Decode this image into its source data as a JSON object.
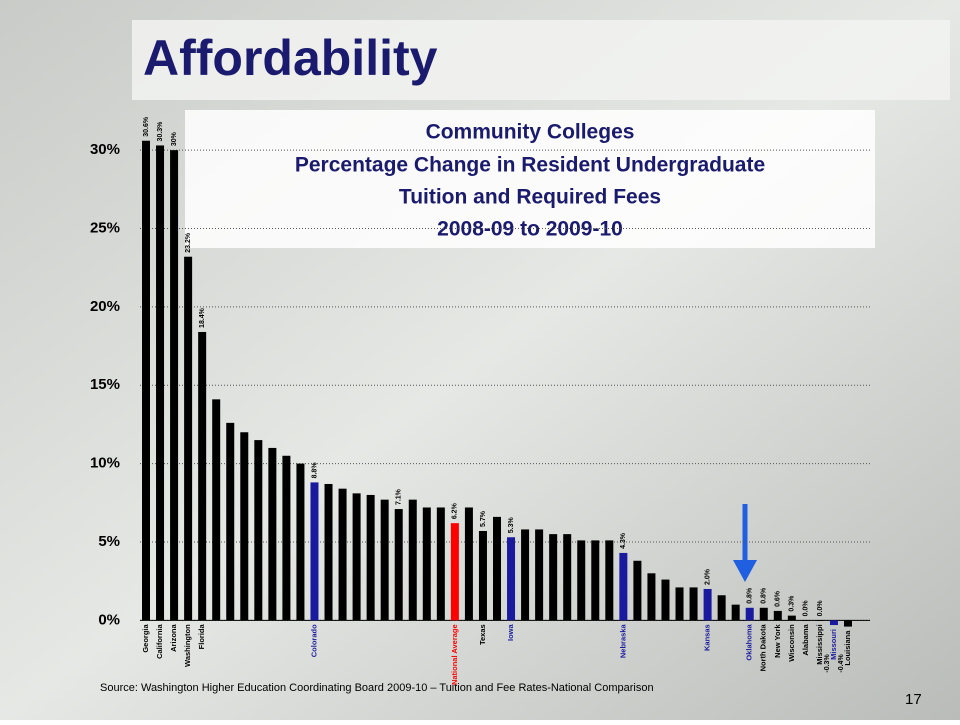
{
  "slide_title": "Affordability",
  "chart_data": {
    "type": "bar",
    "title": [
      "Community Colleges",
      "Percentage Change in Resident Undergraduate",
      "Tuition and Required Fees",
      "2008-09 to 2009-10"
    ],
    "categories": [
      "Georgia",
      "California",
      "Arizona",
      "Washington",
      "Florida",
      null,
      null,
      null,
      null,
      null,
      null,
      null,
      "Colorado",
      null,
      null,
      null,
      null,
      null,
      null,
      null,
      null,
      null,
      "National Average",
      null,
      "Texas",
      null,
      "Iowa",
      null,
      null,
      null,
      null,
      null,
      null,
      null,
      "Nebraska",
      null,
      null,
      null,
      null,
      null,
      "Kansas",
      null,
      null,
      "Oklahoma",
      "North Dakota",
      "New York",
      "Wisconsin",
      "Alabama",
      "Mississippi",
      "Missouri",
      "Louisiana"
    ],
    "values": [
      30.6,
      30.3,
      30,
      23.2,
      18.4,
      14.1,
      12.6,
      12.0,
      11.5,
      11.0,
      10.5,
      10.0,
      8.8,
      8.7,
      8.4,
      8.1,
      8.0,
      7.7,
      7.1,
      7.7,
      7.2,
      7.2,
      6.2,
      7.2,
      5.7,
      6.6,
      5.3,
      5.8,
      5.8,
      5.5,
      5.5,
      5.1,
      5.1,
      5.1,
      4.3,
      3.8,
      3.0,
      2.6,
      2.1,
      2.1,
      2.0,
      1.6,
      1.0,
      0.8,
      0.8,
      0.6,
      0.3,
      0.0,
      0.0,
      -0.3,
      -0.4
    ],
    "value_labels": [
      "30.6%",
      "30.3%",
      "30%",
      "23.2%",
      "18.4%",
      null,
      null,
      null,
      null,
      null,
      null,
      null,
      "8.8%",
      null,
      null,
      null,
      null,
      null,
      "7.1%",
      null,
      null,
      null,
      "6.2%",
      null,
      "5.7%",
      null,
      "5.3%",
      null,
      null,
      null,
      null,
      null,
      null,
      null,
      "4.3%",
      null,
      null,
      null,
      null,
      null,
      "2.0%",
      null,
      null,
      "0.8%",
      "0.8%",
      "0.6%",
      "0.3%",
      "0.0%",
      "0.0%",
      "-0.3%",
      "-0.4%"
    ],
    "bar_colors": [
      "#000000",
      "#000000",
      "#000000",
      "#000000",
      "#000000",
      "#000000",
      "#000000",
      "#000000",
      "#000000",
      "#000000",
      "#000000",
      "#000000",
      "#1a1a9e",
      "#000000",
      "#000000",
      "#000000",
      "#000000",
      "#000000",
      "#000000",
      "#000000",
      "#000000",
      "#000000",
      "#ff0000",
      "#000000",
      "#000000",
      "#000000",
      "#1a1a9e",
      "#000000",
      "#000000",
      "#000000",
      "#000000",
      "#000000",
      "#000000",
      "#000000",
      "#1a1a9e",
      "#000000",
      "#000000",
      "#000000",
      "#000000",
      "#000000",
      "#1a1a9e",
      "#000000",
      "#000000",
      "#1a1a9e",
      "#000000",
      "#000000",
      "#000000",
      "#000000",
      "#000000",
      "#1a1a9e",
      "#000000"
    ],
    "ylim": [
      -1,
      33.2
    ],
    "yticks": [
      {
        "value": 0,
        "label": "0%"
      },
      {
        "value": 5,
        "label": "5%"
      },
      {
        "value": 10,
        "label": "10%"
      },
      {
        "value": 15,
        "label": "15%"
      },
      {
        "value": 20,
        "label": "20%"
      },
      {
        "value": 25,
        "label": "25%"
      },
      {
        "value": 30,
        "label": "30%"
      }
    ],
    "grid": true
  },
  "source": "Source: Washington Higher Education Coordinating Board 2009-10 – Tuition and Fee Rates-National Comparison",
  "page_number": "17"
}
